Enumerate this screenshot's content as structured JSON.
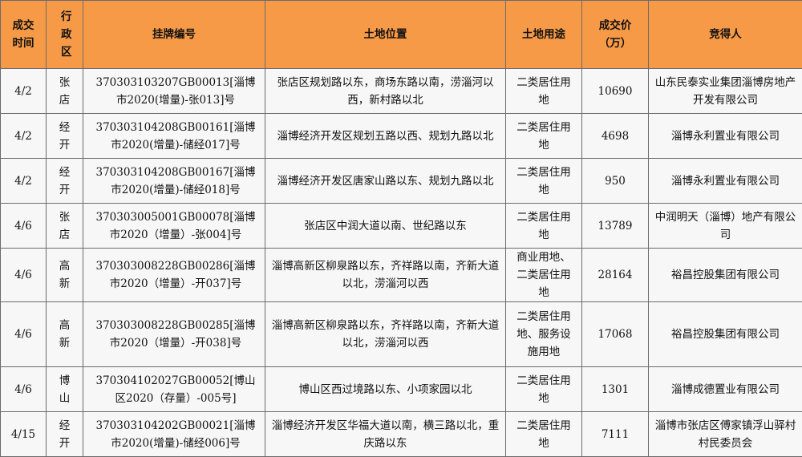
{
  "table": {
    "headers": [
      "成交时间",
      "行政区",
      "挂牌编号",
      "土地位置",
      "土地用途",
      "成交价（万）",
      "竞得人"
    ],
    "rows": [
      [
        "4/2",
        "张店",
        "370303103207GB00013[淄博市2020(增量)-张013]号",
        "张店区规划路以东，商场东路以南，涝淄河以西，新村路以北",
        "二类居住用地",
        "10690",
        "山东民泰实业集团淄博房地产开发有限公司"
      ],
      [
        "4/2",
        "经开",
        "370303104208GB00161[淄博市2020(增量)-储经017]号",
        "淄博经济开发区规划五路以西、规划九路以北",
        "二类居住用地",
        "4698",
        "淄博永利置业有限公司"
      ],
      [
        "4/2",
        "经开",
        "370303104208GB00167[淄博市2020(增量)-储经018]号",
        "淄博经济开发区唐家山路以东、规划九路以北",
        "二类居住用地",
        "950",
        "淄博永利置业有限公司"
      ],
      [
        "4/6",
        "张店",
        "370303005001GB00078[淄博市2020（增量）-张004]号",
        "张店区中润大道以南、世纪路以东",
        "二类居住用地",
        "13789",
        "中润明天（淄博）地产有限公司"
      ],
      [
        "4/6",
        "高新",
        "370303008228GB00286[淄博市2020（增量）-开037]号",
        "淄博高新区柳泉路以东，齐祥路以南，齐新大道以北，涝淄河以西",
        "商业用地、二类居住用地",
        "28164",
        "裕昌控股集团有限公司"
      ],
      [
        "4/6",
        "高新",
        "370303008228GB00285[淄博市2020（增量）-开038]号",
        "淄博高新区柳泉路以东，齐祥路以南，齐新大道以北，涝淄河以西",
        "二类居住用地、服务设施用地",
        "17068",
        "裕昌控股集团有限公司"
      ],
      [
        "4/6",
        "博山",
        "370304102027GB00052[博山区2020（存量）-005号]",
        "博山区西过境路以东、小项家园以北",
        "二类居住用地",
        "1301",
        "淄博成德置业有限公司"
      ],
      [
        "4/15",
        "经开",
        "370303104202GB00021[淄博市2020(增量)-储经006]号",
        "淄博经济开发区华福大道以南，横三路以北，重庆路以东",
        "二类居住用地",
        "7111",
        "淄博市张店区傅家镇浮山驿村村民委员会"
      ]
    ]
  }
}
